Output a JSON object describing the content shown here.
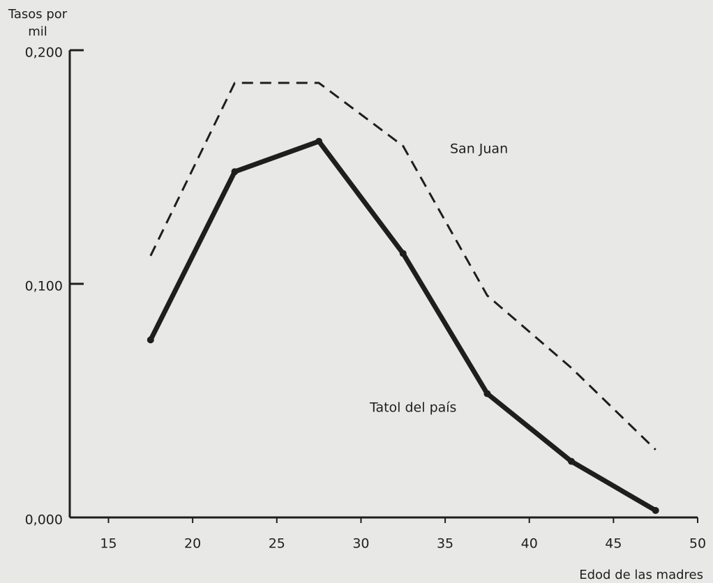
{
  "chart_data": {
    "type": "line",
    "y_label": "Tasos por mil",
    "x_label": "Edod de las madres",
    "x": [
      17.5,
      22.5,
      27.5,
      32.5,
      37.5,
      42.5,
      47.5
    ],
    "series": [
      {
        "name": "San Juan",
        "color": "#1e1e1e",
        "dash": true,
        "values": [
          0.112,
          0.186,
          0.186,
          0.159,
          0.095,
          0.064,
          0.029
        ]
      },
      {
        "name": "Tatol del país",
        "color": "#1e1e1e",
        "dash": false,
        "values": [
          0.076,
          0.148,
          0.161,
          0.113,
          0.053,
          0.024,
          0.003
        ]
      }
    ],
    "xlim": [
      12.7,
      50
    ],
    "xticks": [
      15,
      20,
      25,
      30,
      35,
      40,
      45,
      50
    ],
    "ylim": [
      0,
      0.2
    ],
    "yticks": [
      {
        "value": 0,
        "label": "0,000"
      },
      {
        "value": 0.1,
        "label": "0,100"
      },
      {
        "value": 0.2,
        "label": "0,200"
      }
    ],
    "grid": false
  }
}
